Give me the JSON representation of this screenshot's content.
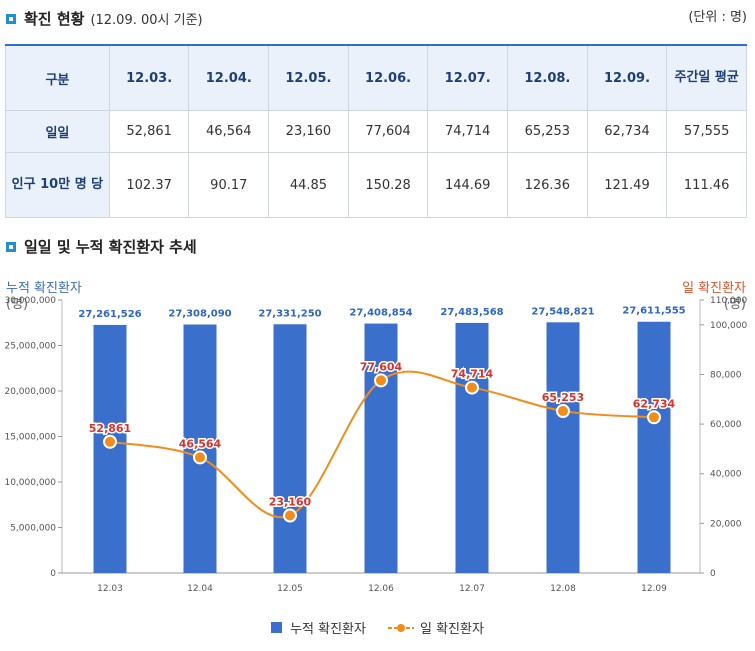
{
  "header": {
    "title": "확진 현황",
    "subtitle": "(12.09. 00시 기준)",
    "unit": "(단위 : 명)"
  },
  "table": {
    "headers": [
      "구분",
      "12.03.",
      "12.04.",
      "12.05.",
      "12.06.",
      "12.07.",
      "12.08.",
      "12.09.",
      "주간일 평균"
    ],
    "rows": [
      {
        "label": "일일",
        "values": [
          "52,861",
          "46,564",
          "23,160",
          "77,604",
          "74,714",
          "65,253",
          "62,734",
          "57,555"
        ]
      },
      {
        "label": "인구 10만 명 당",
        "values": [
          "102.37",
          "90.17",
          "44.85",
          "150.28",
          "144.69",
          "126.36",
          "121.49",
          "111.46"
        ]
      }
    ]
  },
  "chart_section": {
    "title": "일일 및 누적 확진환자 추세"
  },
  "chart_data": {
    "type": "bar",
    "categories": [
      "12.03",
      "12.04",
      "12.05",
      "12.06",
      "12.07",
      "12.08",
      "12.09"
    ],
    "series": [
      {
        "name": "누적 확진환자",
        "type": "bar",
        "axis": "left",
        "values": [
          27261526,
          27308090,
          27331250,
          27408854,
          27483568,
          27548821,
          27611555
        ],
        "labels": [
          "27,261,526",
          "27,308,090",
          "27,331,250",
          "27,408,854",
          "27,483,568",
          "27,548,821",
          "27,611,555"
        ]
      },
      {
        "name": "일 확진환자",
        "type": "line",
        "axis": "right",
        "values": [
          52861,
          46564,
          23160,
          77604,
          74714,
          65253,
          62734
        ],
        "labels": [
          "52,861",
          "46,564",
          "23,160",
          "77,604",
          "74,714",
          "65,253",
          "62,734"
        ]
      }
    ],
    "left_axis": {
      "label": "누적 확진환자",
      "unit": "(명)",
      "ylim": [
        0,
        30000000
      ],
      "ticks": [
        "0",
        "5,000,000",
        "10,000,000",
        "15,000,000",
        "20,000,000",
        "25,000,000",
        "30,000,000"
      ]
    },
    "right_axis": {
      "label": "일 확진환자",
      "unit": "(명)",
      "ylim": [
        0,
        110000
      ],
      "ticks": [
        "0",
        "20,000",
        "40,000",
        "60,000",
        "80,000",
        "100,000",
        "110,000"
      ]
    },
    "colors": {
      "bar": "#3a6fcb",
      "line": "#f28c1b",
      "bar_label": "#2f66c4",
      "line_label": "#d9342b"
    }
  }
}
